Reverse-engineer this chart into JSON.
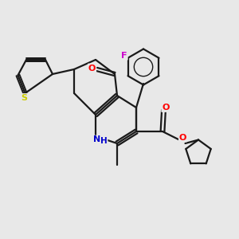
{
  "background_color": "#e8e8e8",
  "bond_color": "#1a1a1a",
  "atom_colors": {
    "O": "#ff0000",
    "N": "#0000cc",
    "S": "#cccc00",
    "F": "#cc00cc"
  },
  "figsize": [
    3.0,
    3.0
  ],
  "dpi": 100
}
